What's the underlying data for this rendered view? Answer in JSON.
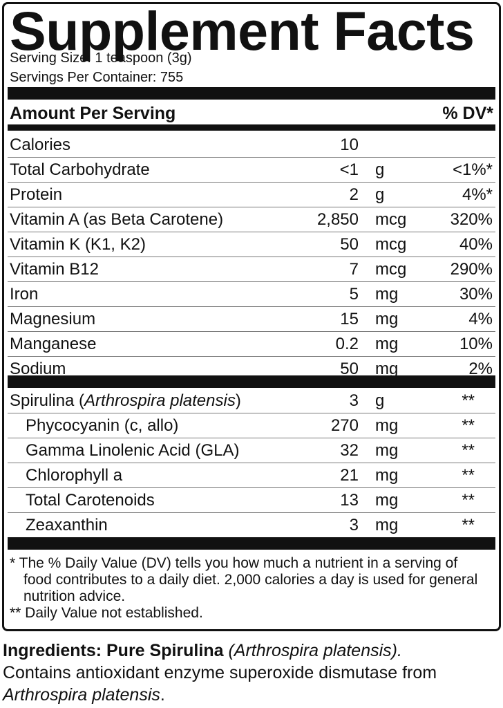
{
  "title": "Supplement Facts",
  "serving_size": "Serving Size: 1 teaspoon (3g)",
  "servings_per_container": "Servings Per Container: 755",
  "header": {
    "amount": "Amount Per Serving",
    "dv": "% DV*"
  },
  "nutrients": [
    {
      "name": "Calories",
      "amount": "10",
      "unit": "",
      "dv": ""
    },
    {
      "name": "Total Carbohydrate",
      "amount": "<1",
      "unit": "g",
      "dv": "<1%*"
    },
    {
      "name": "Protein",
      "amount": "2",
      "unit": "g",
      "dv": "4%*"
    },
    {
      "name": "Vitamin A (as Beta Carotene)",
      "amount": "2,850",
      "unit": "mcg",
      "dv": "320%"
    },
    {
      "name": "Vitamin K (K1, K2)",
      "amount": "50",
      "unit": "mcg",
      "dv": "40%"
    },
    {
      "name": "Vitamin B12",
      "amount": "7",
      "unit": "mcg",
      "dv": "290%"
    },
    {
      "name": "Iron",
      "amount": "5",
      "unit": "mg",
      "dv": "30%"
    },
    {
      "name": "Magnesium",
      "amount": "15",
      "unit": "mg",
      "dv": "4%"
    },
    {
      "name": "Manganese",
      "amount": "0.2",
      "unit": "mg",
      "dv": "10%"
    },
    {
      "name": "Sodium",
      "amount": "50",
      "unit": "mg",
      "dv": "2%"
    }
  ],
  "spirulina": {
    "name": "Spirulina (",
    "latin": "Arthrospira platensis",
    "close": ")",
    "amount": "3",
    "unit": "g",
    "dv": "**"
  },
  "components": [
    {
      "name": "Phycocyanin (c, allo)",
      "amount": "270",
      "unit": "mg",
      "dv": "**"
    },
    {
      "name": "Gamma Linolenic Acid (GLA)",
      "amount": "32",
      "unit": "mg",
      "dv": "**"
    },
    {
      "name": "Chlorophyll a",
      "amount": "21",
      "unit": "mg",
      "dv": "**"
    },
    {
      "name": "Total Carotenoids",
      "amount": "13",
      "unit": "mg",
      "dv": "**"
    },
    {
      "name": "Zeaxanthin",
      "amount": "3",
      "unit": "mg",
      "dv": "**"
    }
  ],
  "footnotes": {
    "dv": "* The % Daily Value (DV) tells you how much a nutrient in a serving of food contributes to a daily diet.  2,000 calories a day is used for general nutrition advice.",
    "not_established": "** Daily Value not established."
  },
  "ingredients": {
    "label": "Ingredients: Pure Spirulina",
    "latin": "(Arthrospira platensis).",
    "contains": "Contains antioxidant enzyme superoxide dismutase from",
    "latin2": "Arthrospira platensis",
    "end": "."
  }
}
